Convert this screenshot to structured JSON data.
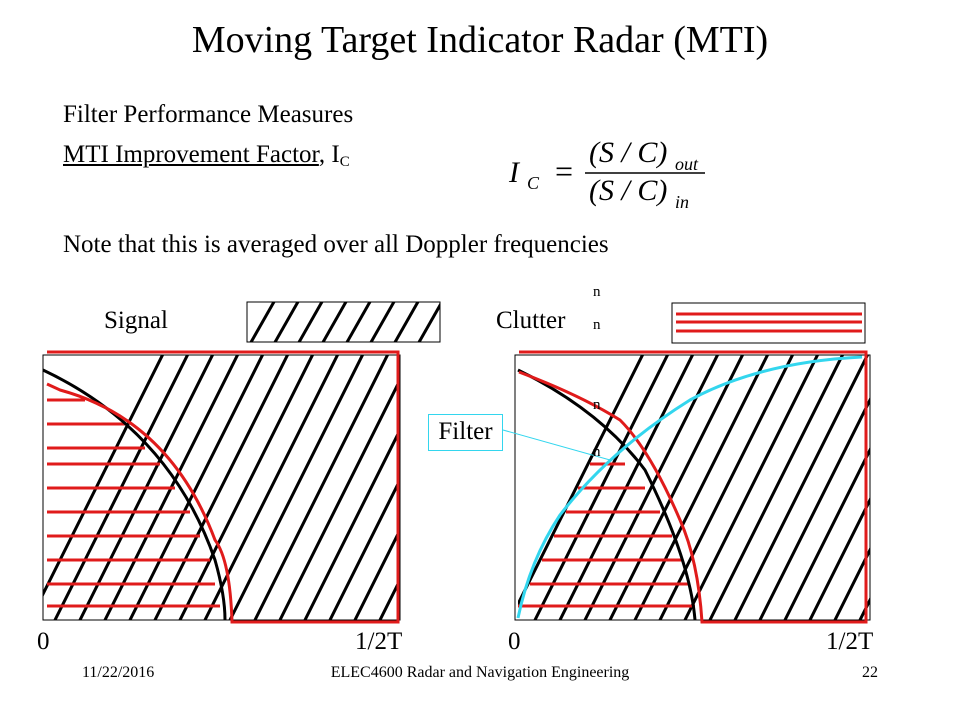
{
  "title": "Moving Target Indicator Radar (MTI)",
  "subtitle_1": "Filter Performance Measures",
  "subtitle_2": "MTI Improvement Factor",
  "subtitle_2_suffix": ", I",
  "subtitle_2_sub": "C",
  "formula": {
    "lhs": "I",
    "lhs_sub": "C",
    "equals": "=",
    "num": "(S / C)",
    "num_sub": "out",
    "den": "(S / C)",
    "den_sub": "in"
  },
  "note": "Note that this is averaged over all Doppler frequencies",
  "diagram": {
    "signal_label": "Signal",
    "clutter_label": "Clutter",
    "filter_label": "Filter",
    "n_marks": [
      "n",
      "n",
      "n",
      "n"
    ],
    "left_panel": {
      "x_start": "0",
      "x_end": "1/2T"
    },
    "right_panel": {
      "x_start": "0",
      "x_end": "1/2T"
    },
    "colors": {
      "signal": "#000000",
      "clutter": "#e01b1b",
      "filter": "#33d6ee"
    }
  },
  "footer": {
    "date": "11/22/2016",
    "course": "ELEC4600 Radar and Navigation Engineering",
    "page": "22"
  }
}
